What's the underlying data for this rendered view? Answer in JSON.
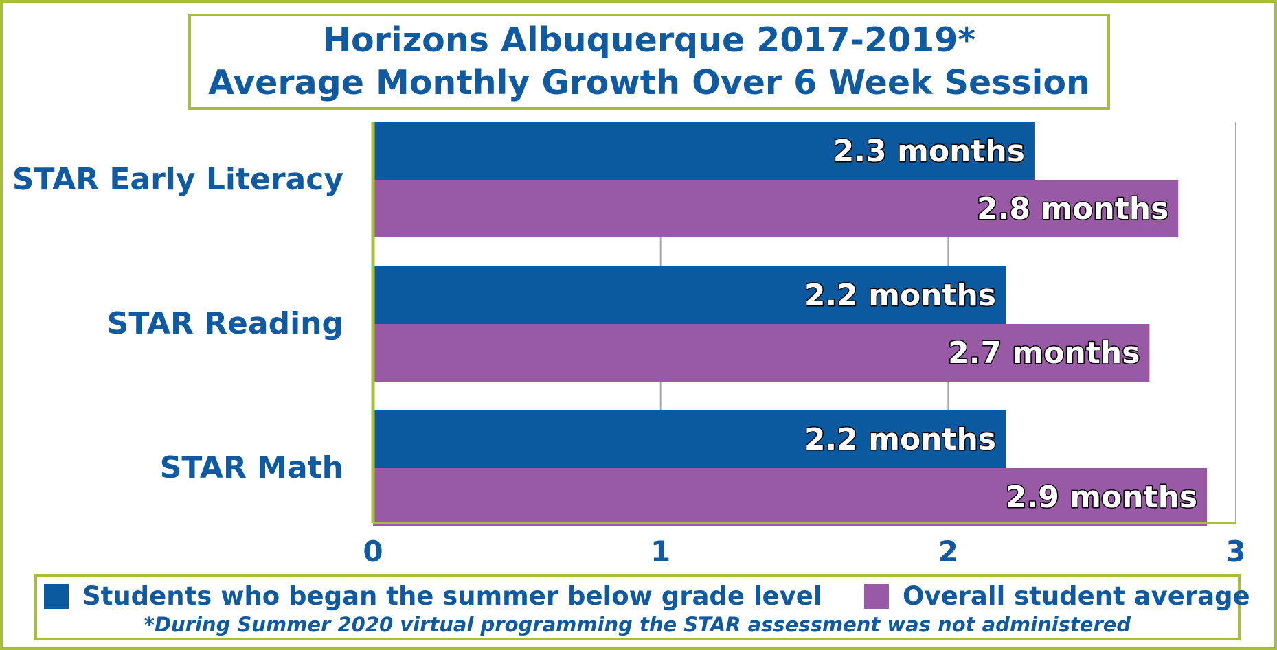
{
  "chart_data": {
    "type": "bar",
    "orientation": "horizontal",
    "title": [
      "Horizons Albuquerque 2017-2019*",
      "Average Monthly Growth Over 6 Week Session"
    ],
    "categories": [
      "STAR Early Literacy",
      "STAR Reading",
      "STAR Math"
    ],
    "series": [
      {
        "name": "Students who began the summer below grade level",
        "color": "#0b5aa0",
        "values": [
          2.3,
          2.2,
          2.2
        ],
        "labels": [
          "2.3 months",
          "2.2 months",
          "2.2 months"
        ]
      },
      {
        "name": "Overall student average",
        "color": "#995aa5",
        "values": [
          2.8,
          2.7,
          2.9
        ],
        "labels": [
          "2.8 months",
          "2.7 months",
          "2.9 months"
        ]
      }
    ],
    "xlim": [
      0,
      3
    ],
    "xticks": [
      "0",
      "1",
      "2",
      "3"
    ],
    "grid": true,
    "legend_position": "bottom",
    "footnote": "*During Summer 2020 virtual programming the STAR assessment was not administered"
  },
  "colors": {
    "accent_border": "#a8bd3a",
    "text": "#0f5aa0"
  }
}
